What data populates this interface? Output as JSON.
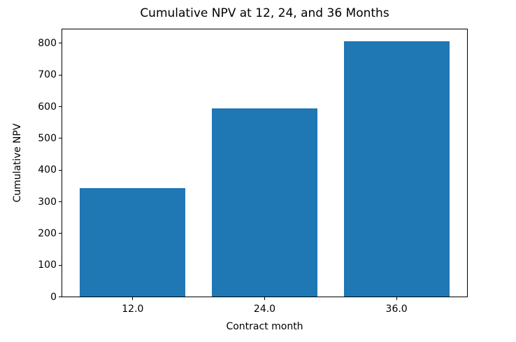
{
  "chart_data": {
    "type": "bar",
    "title": "Cumulative NPV at 12, 24, and 36 Months",
    "xlabel": "Contract month",
    "ylabel": "Cumulative NPV",
    "categories": [
      "12.0",
      "24.0",
      "36.0"
    ],
    "x": [
      12,
      24,
      36
    ],
    "values": [
      343,
      595,
      807
    ],
    "bar_color": "#1f77b4",
    "bar_width_data_units": 9.6,
    "xlim": [
      5.52,
      42.48
    ],
    "ylim": [
      0,
      846
    ],
    "yticks": [
      0,
      100,
      200,
      300,
      400,
      500,
      600,
      700,
      800
    ],
    "grid": false,
    "legend_position": "none",
    "spine_color": "#000000",
    "background_color": "#ffffff"
  }
}
